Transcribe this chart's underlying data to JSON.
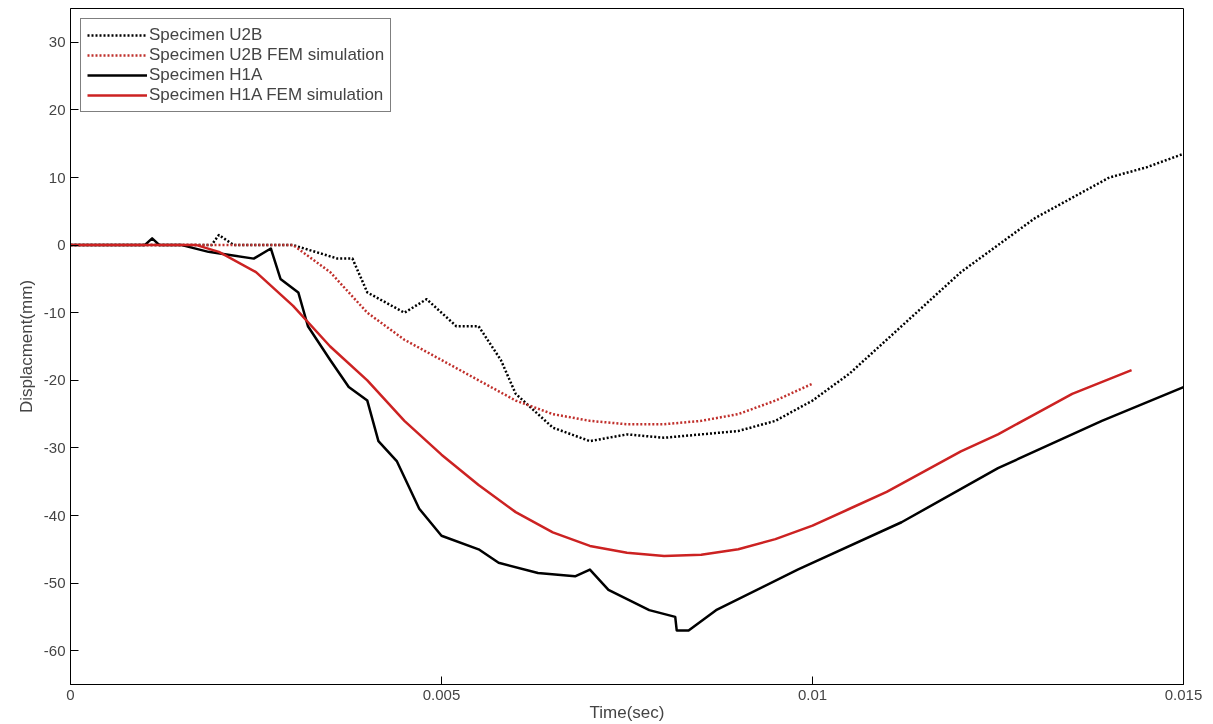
{
  "chart_data": {
    "type": "line",
    "xlabel": "Time(sec)",
    "ylabel": "Displacment(mm)",
    "xlim": [
      0,
      0.015
    ],
    "ylim": [
      -65,
      35
    ],
    "xticks": [
      0,
      0.005,
      0.01,
      0.015
    ],
    "yticks": [
      -60,
      -50,
      -40,
      -30,
      -20,
      -10,
      0,
      10,
      20,
      30
    ],
    "grid": false,
    "legend": "top left",
    "series": [
      {
        "name": "Specimen U2B",
        "color": "#000000",
        "line_style": "dotted",
        "x": [
          0,
          0.0019,
          0.002,
          0.0022,
          0.003,
          0.0036,
          0.0038,
          0.004,
          0.0045,
          0.0048,
          0.0052,
          0.0055,
          0.0058,
          0.006,
          0.0065,
          0.007,
          0.0075,
          0.008,
          0.0085,
          0.009,
          0.0095,
          0.01,
          0.0105,
          0.011,
          0.0115,
          0.012,
          0.0125,
          0.013,
          0.0135,
          0.014,
          0.0145,
          0.015
        ],
        "values": [
          0,
          0,
          1.5,
          0,
          0,
          -2,
          -2,
          -7,
          -10,
          -8,
          -12,
          -12,
          -17,
          -22,
          -27,
          -29,
          -28,
          -28.5,
          -28,
          -27.5,
          -26,
          -23,
          -19,
          -14,
          -9,
          -4,
          0,
          4,
          7,
          10,
          11.5,
          13.5
        ]
      },
      {
        "name": "Specimen U2B FEM simulation",
        "color": "#c0302c",
        "line_style": "dotted",
        "x": [
          0,
          0.0029,
          0.003,
          0.0035,
          0.004,
          0.0045,
          0.005,
          0.0055,
          0.006,
          0.0065,
          0.007,
          0.0075,
          0.008,
          0.0085,
          0.009,
          0.0095,
          0.01
        ],
        "values": [
          0,
          0,
          0,
          -4,
          -10,
          -14,
          -17,
          -20,
          -23,
          -25,
          -26,
          -26.5,
          -26.5,
          -26,
          -25,
          -23,
          -20.5
        ]
      },
      {
        "name": "Specimen H1A",
        "color": "#000000",
        "line_style": "solid",
        "x": [
          0,
          0.001,
          0.0011,
          0.0012,
          0.0015,
          0.00186,
          0.00247,
          0.0027,
          0.00283,
          0.00307,
          0.0032,
          0.0035,
          0.00375,
          0.004,
          0.00415,
          0.0044,
          0.0047,
          0.005,
          0.0055,
          0.00577,
          0.0063,
          0.0068,
          0.007,
          0.00725,
          0.0078,
          0.00815,
          0.00817,
          0.00833,
          0.0087,
          0.0098,
          0.0112,
          0.0125,
          0.0139,
          0.015
        ],
        "values": [
          0,
          0,
          1,
          0,
          0,
          -1,
          -2,
          -0.5,
          -5,
          -7,
          -12,
          -17,
          -21,
          -23,
          -29,
          -32,
          -39,
          -43,
          -45,
          -47,
          -48.5,
          -49,
          -48,
          -51,
          -54,
          -55,
          -57,
          -57,
          -54,
          -48,
          -41,
          -33,
          -26,
          -21
        ]
      },
      {
        "name": "Specimen H1A FEM simulation",
        "color": "#cc2222",
        "line_style": "solid",
        "x": [
          0,
          0.0017,
          0.002,
          0.0025,
          0.003,
          0.0035,
          0.004,
          0.0045,
          0.005,
          0.0055,
          0.006,
          0.0065,
          0.007,
          0.0075,
          0.008,
          0.0085,
          0.009,
          0.0095,
          0.01,
          0.0105,
          0.011,
          0.0115,
          0.012,
          0.0125,
          0.013,
          0.0135,
          0.0143
        ],
        "values": [
          0,
          0,
          -1,
          -4,
          -9,
          -15,
          -20,
          -26,
          -31,
          -35.5,
          -39.5,
          -42.5,
          -44.5,
          -45.5,
          -46,
          -45.8,
          -45,
          -43.5,
          -41.5,
          -39,
          -36.5,
          -33.5,
          -30.5,
          -28,
          -25,
          -22,
          -18.5
        ]
      }
    ]
  }
}
